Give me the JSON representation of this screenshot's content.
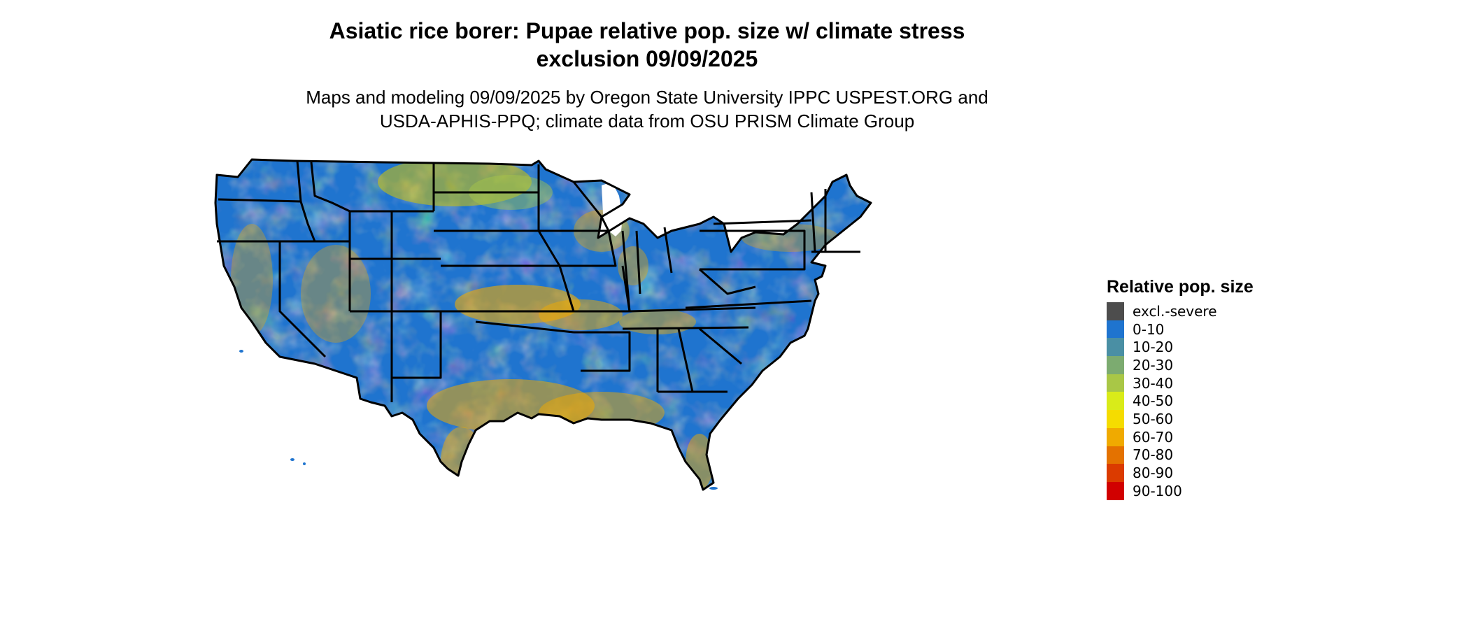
{
  "title_line1": "Asiatic rice borer: Pupae relative pop. size w/ climate stress",
  "title_line2": "exclusion 09/09/2025",
  "subtitle_line1": "Maps and modeling 09/09/2025 by Oregon State University IPPC USPEST.ORG and",
  "subtitle_line2": "USDA-APHIS-PPQ; climate data from OSU PRISM Climate Group",
  "legend": {
    "title": "Relative pop. size",
    "items": [
      {
        "label": "excl.-severe",
        "color": "#4d4d4d"
      },
      {
        "label": "0-10",
        "color": "#1f74cf"
      },
      {
        "label": "10-20",
        "color": "#4a8fa4"
      },
      {
        "label": "20-30",
        "color": "#7cab70"
      },
      {
        "label": "30-40",
        "color": "#a9c746"
      },
      {
        "label": "40-50",
        "color": "#d9eb19"
      },
      {
        "label": "50-60",
        "color": "#f5dc00"
      },
      {
        "label": "60-70",
        "color": "#f0aa00"
      },
      {
        "label": "70-80",
        "color": "#e47200"
      },
      {
        "label": "80-90",
        "color": "#db3b00"
      },
      {
        "label": "90-100",
        "color": "#d10000"
      }
    ]
  }
}
